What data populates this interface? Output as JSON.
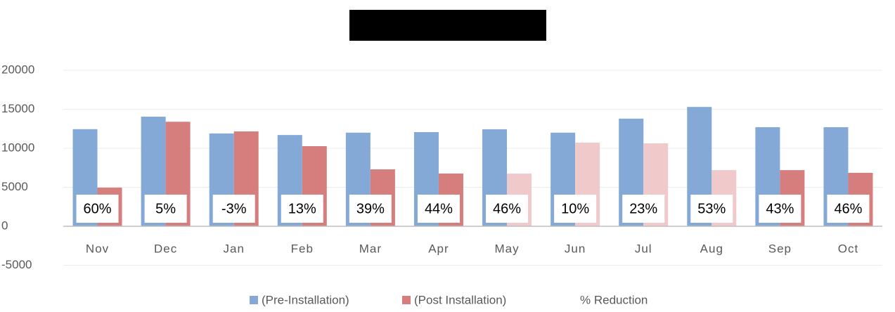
{
  "chart_data": {
    "type": "bar",
    "categories": [
      "Nov",
      "Dec",
      "Jan",
      "Feb",
      "Mar",
      "Apr",
      "May",
      "Jun",
      "Jul",
      "Aug",
      "Sep",
      "Oct"
    ],
    "series": [
      {
        "name": "(Pre-Installation)",
        "color": "#84a9d6",
        "values": [
          12450,
          14050,
          11900,
          11700,
          12000,
          12070,
          12430,
          12000,
          13800,
          15300,
          12700,
          12700
        ]
      },
      {
        "name": "(Post Installation)",
        "color": "#d67d7d",
        "colors": [
          "#d67d7d",
          "#d67d7d",
          "#d67d7d",
          "#d67d7d",
          "#d67d7d",
          "#d67d7d",
          "#f0caca",
          "#f0caca",
          "#f0caca",
          "#f0caca",
          "#d67d7d",
          "#d67d7d"
        ],
        "values": [
          4950,
          13400,
          12160,
          10270,
          7300,
          6760,
          6750,
          10720,
          10630,
          7200,
          7200,
          6850
        ]
      },
      {
        "name": "% Reduction",
        "values": [
          60,
          5,
          -3,
          13,
          39,
          44,
          46,
          10,
          23,
          53,
          43,
          46
        ],
        "value_labels": [
          "60%",
          "5%",
          "-3%",
          "13%",
          "39%",
          "44%",
          "46%",
          "10%",
          "23%",
          "53%",
          "43%",
          "46%"
        ]
      }
    ],
    "ylim": [
      -5000,
      20000
    ],
    "yticks": [
      -5000,
      0,
      5000,
      10000,
      15000,
      20000
    ],
    "grid": true
  }
}
